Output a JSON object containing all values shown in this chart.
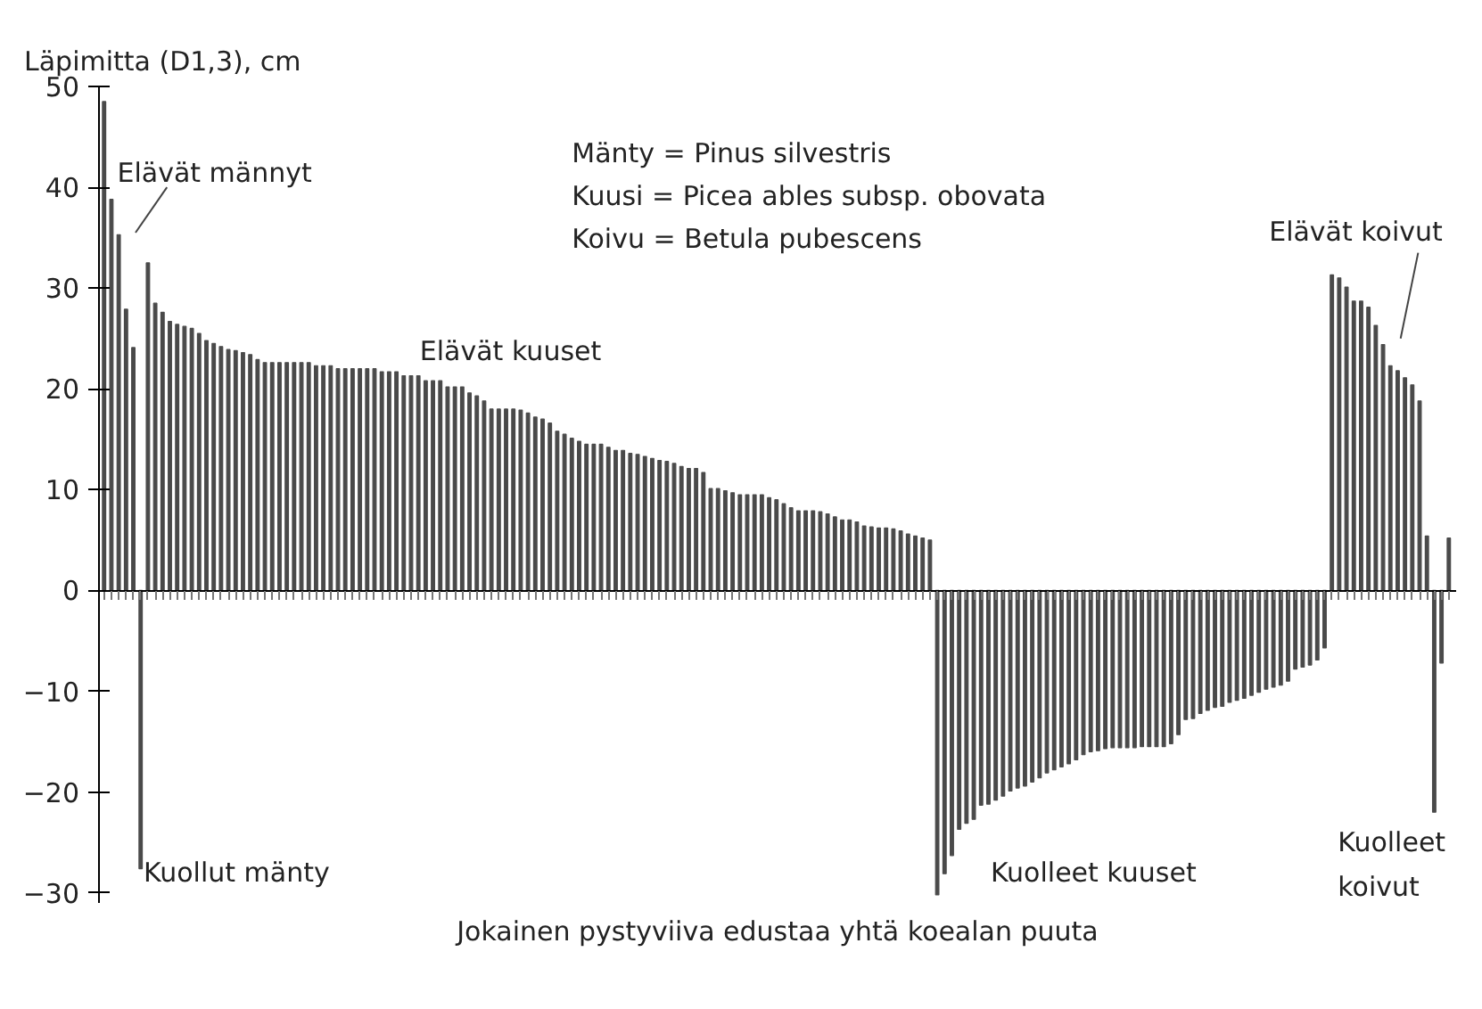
{
  "chart_data": {
    "type": "bar",
    "ylabel": "Läpimitta (D1,3), cm",
    "xlabel": "Jokainen pystyviiva edustaa yhtä koealan puuta",
    "annotations": [
      "Elävät männyt",
      "Mänty = Pinus silvestris",
      "Kuusi = Picea ables subsp. obovata",
      "Koivu = Betula pubescens",
      "Elävät kuuset",
      "Elävät koivut",
      "Kuollut mänty",
      "Kuolleet kuuset",
      "Kuolleet\nkoivut"
    ],
    "color": "#4a4a4a",
    "ylim": [
      -31,
      50
    ],
    "yticks": [
      -30,
      -20,
      -10,
      0,
      10,
      20,
      30,
      40,
      50
    ],
    "categories": [
      null,
      null,
      null,
      null,
      null,
      null,
      null,
      null,
      null,
      null,
      null,
      null,
      null,
      null,
      null,
      null,
      null,
      null,
      null,
      null,
      null,
      null,
      null,
      null,
      null,
      null,
      null,
      null,
      null,
      null,
      null,
      null,
      null,
      null,
      null,
      null,
      null,
      null,
      null,
      null,
      null,
      null,
      null,
      null,
      null,
      null,
      null,
      null,
      null,
      null,
      null,
      null,
      null,
      null,
      null,
      null,
      null,
      null,
      null,
      null,
      null,
      null,
      null,
      null,
      null,
      null,
      null,
      null,
      null,
      null,
      null,
      null,
      null,
      null,
      null,
      null,
      null,
      null,
      null,
      null,
      null,
      null,
      null,
      null,
      null,
      null,
      null,
      null,
      null,
      null,
      null,
      null,
      null,
      null,
      null,
      null,
      null,
      null,
      null,
      null,
      null,
      null,
      null,
      null,
      null,
      null,
      null,
      null,
      null,
      null,
      null,
      null,
      null,
      null,
      null,
      null,
      null,
      null,
      null,
      null,
      null,
      null,
      null,
      null,
      null,
      null,
      null,
      null,
      null,
      null,
      null,
      null,
      null,
      null,
      null,
      null,
      null,
      null,
      null,
      null,
      null,
      null,
      null,
      null,
      null,
      null,
      null,
      null,
      null,
      null,
      null,
      null,
      null,
      null,
      null,
      null,
      null,
      null,
      null,
      null,
      null,
      null,
      null,
      null,
      null,
      null,
      null,
      null,
      null,
      null,
      null,
      null,
      null,
      null,
      null,
      null,
      null,
      null,
      null,
      null,
      null,
      null,
      null,
      null,
      null
    ],
    "values": [
      48.5,
      38.8,
      35.3,
      27.9,
      24.1,
      -27.6,
      32.5,
      28.5,
      27.6,
      26.7,
      26.4,
      26.2,
      26.0,
      25.5,
      24.8,
      24.5,
      24.2,
      23.9,
      23.8,
      23.6,
      23.4,
      22.9,
      22.6,
      22.6,
      22.6,
      22.6,
      22.6,
      22.6,
      22.6,
      22.3,
      22.3,
      22.3,
      22.0,
      22.0,
      22.0,
      22.0,
      22.0,
      22.0,
      21.7,
      21.7,
      21.7,
      21.3,
      21.3,
      21.3,
      20.8,
      20.8,
      20.8,
      20.2,
      20.2,
      20.2,
      19.6,
      19.3,
      18.8,
      18.0,
      18.0,
      18.0,
      18.0,
      17.9,
      17.6,
      17.2,
      17.0,
      16.6,
      15.8,
      15.5,
      15.1,
      14.8,
      14.5,
      14.5,
      14.5,
      14.2,
      13.9,
      13.9,
      13.6,
      13.5,
      13.3,
      13.1,
      12.9,
      12.8,
      12.6,
      12.3,
      12.1,
      12.1,
      11.7,
      10.1,
      10.1,
      9.9,
      9.7,
      9.5,
      9.5,
      9.5,
      9.5,
      9.2,
      9.0,
      8.6,
      8.2,
      7.9,
      7.9,
      7.9,
      7.8,
      7.6,
      7.3,
      7.0,
      7.0,
      6.8,
      6.4,
      6.3,
      6.2,
      6.2,
      6.1,
      5.9,
      5.6,
      5.4,
      5.2,
      5.0,
      -30.2,
      -28.1,
      -26.3,
      -23.7,
      -23.1,
      -22.7,
      -21.3,
      -21.2,
      -20.8,
      -20.4,
      -19.9,
      -19.6,
      -19.4,
      -19.0,
      -18.6,
      -18.1,
      -17.8,
      -17.5,
      -17.2,
      -16.8,
      -16.3,
      -16.0,
      -15.9,
      -15.7,
      -15.6,
      -15.6,
      -15.6,
      -15.6,
      -15.5,
      -15.5,
      -15.5,
      -15.5,
      -15.2,
      -14.3,
      -12.8,
      -12.7,
      -12.2,
      -11.9,
      -11.6,
      -11.5,
      -11.1,
      -10.9,
      -10.7,
      -10.4,
      -10.1,
      -9.8,
      -9.6,
      -9.4,
      -9.0,
      -7.8,
      -7.6,
      -7.4,
      -6.9,
      -5.7,
      31.3,
      31.0,
      30.1,
      28.7,
      28.7,
      28.1,
      26.3,
      24.4,
      22.3,
      21.8,
      21.1,
      20.4,
      18.8,
      5.4,
      -22.0,
      -7.2,
      5.2
    ]
  }
}
